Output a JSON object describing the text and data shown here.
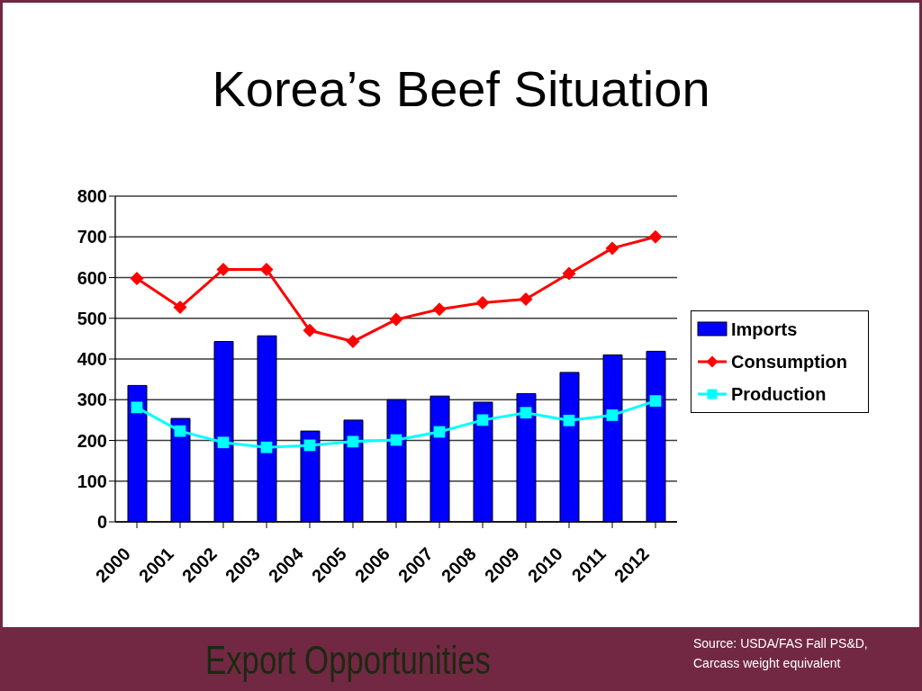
{
  "chart_data": {
    "type": "bar",
    "title": "Korea’s Beef Situation",
    "categories": [
      "2000",
      "2001",
      "2002",
      "2003",
      "2004",
      "2005",
      "2006",
      "2007",
      "2008",
      "2009",
      "2010",
      "2011",
      "2012"
    ],
    "series": [
      {
        "name": "Imports",
        "color": "#0000ff",
        "values": [
          335,
          254,
          443,
          457,
          223,
          250,
          300,
          309,
          294,
          315,
          367,
          410,
          419
        ]
      },
      {
        "name": "Consumption",
        "type": "line",
        "color": "#ff0000",
        "marker": "diamond",
        "values": [
          598,
          527,
          620,
          620,
          470,
          443,
          497,
          522,
          538,
          547,
          610,
          672,
          700
        ]
      },
      {
        "name": "Production",
        "type": "line",
        "color": "#00ffff",
        "marker": "square",
        "values": [
          281,
          223,
          195,
          183,
          188,
          197,
          201,
          221,
          250,
          268,
          249,
          262,
          297
        ]
      }
    ],
    "ylim": [
      0,
      800
    ],
    "yticks": [
      0,
      100,
      200,
      300,
      400,
      500,
      600,
      700,
      800
    ],
    "grid": "y",
    "legend": "right",
    "annotations": [
      "Export Opportunities",
      "Source: USDA/FAS Fall PS&D, Carcass weight equivalent"
    ]
  }
}
